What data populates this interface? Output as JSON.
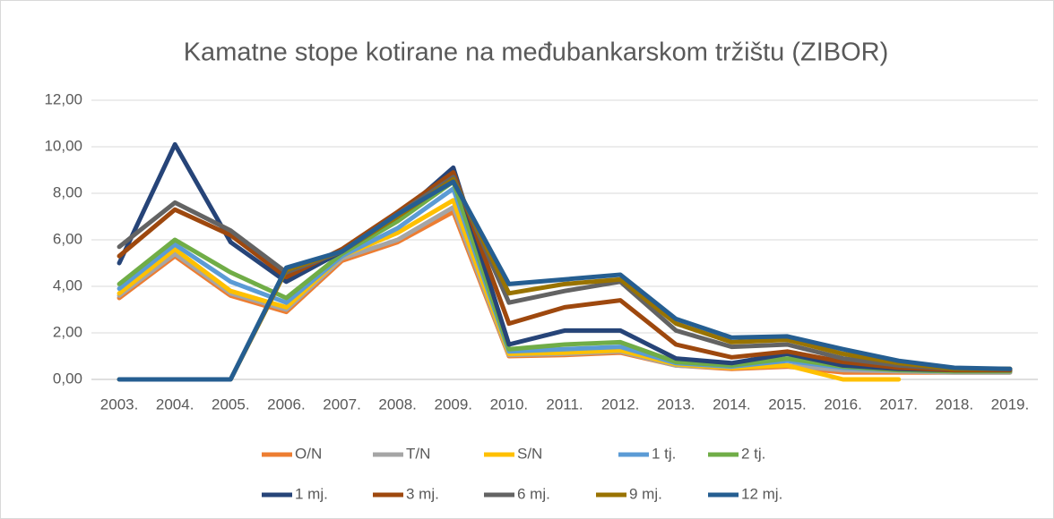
{
  "chart_data": {
    "type": "line",
    "title": "Kamatne stope kotirane na međubankarskom tržištu (ZIBOR)",
    "categories": [
      "2003.",
      "2004.",
      "2005.",
      "2006.",
      "2007.",
      "2008.",
      "2009.",
      "2010.",
      "2011.",
      "2012.",
      "2013.",
      "2014.",
      "2015.",
      "2016.",
      "2017.",
      "2018.",
      "2019."
    ],
    "series": [
      {
        "name": "O/N",
        "color": "#ed7d31",
        "values": [
          3.5,
          5.3,
          3.6,
          2.9,
          5.1,
          5.9,
          7.2,
          1.0,
          1.05,
          1.15,
          0.6,
          0.45,
          0.55,
          0.3,
          0.3,
          0.3,
          0.3
        ]
      },
      {
        "name": "T/N",
        "color": "#a5a5a5",
        "values": [
          3.6,
          5.4,
          3.7,
          3.0,
          5.2,
          6.0,
          7.4,
          1.05,
          1.1,
          1.2,
          0.6,
          0.5,
          0.6,
          0.4,
          0.35,
          0.3,
          0.3
        ]
      },
      {
        "name": "S/N",
        "color": "#ffc000",
        "values": [
          3.7,
          5.6,
          3.8,
          3.1,
          5.3,
          6.3,
          7.7,
          1.1,
          1.15,
          1.25,
          0.65,
          0.5,
          0.6,
          0,
          0,
          null,
          null
        ]
      },
      {
        "name": "1 tj.",
        "color": "#5b9bd5",
        "values": [
          3.9,
          5.8,
          4.2,
          3.3,
          5.3,
          6.5,
          8.2,
          1.2,
          1.3,
          1.4,
          0.7,
          0.55,
          0.8,
          0.5,
          0.4,
          0.35,
          0.35
        ]
      },
      {
        "name": "2 tj.",
        "color": "#70ad47",
        "values": [
          4.1,
          6.0,
          4.6,
          3.5,
          5.4,
          6.8,
          8.5,
          1.3,
          1.5,
          1.6,
          0.75,
          0.6,
          0.9,
          0.55,
          0.4,
          0.35,
          0.35
        ]
      },
      {
        "name": "1 mj.",
        "color": "#264478",
        "values": [
          5.0,
          10.1,
          5.9,
          4.2,
          5.5,
          7.0,
          9.1,
          1.5,
          2.1,
          2.1,
          0.9,
          0.7,
          1.1,
          0.6,
          0.45,
          0.4,
          0.4
        ]
      },
      {
        "name": "3 mj.",
        "color": "#9e480e",
        "values": [
          5.3,
          7.3,
          6.2,
          4.4,
          5.6,
          7.2,
          8.9,
          2.4,
          3.1,
          3.4,
          1.5,
          0.95,
          1.2,
          0.75,
          0.5,
          0.4,
          0.4
        ]
      },
      {
        "name": "6 mj.",
        "color": "#636363",
        "values": [
          5.7,
          7.6,
          6.4,
          4.6,
          5.5,
          7.1,
          8.7,
          3.3,
          3.8,
          4.2,
          2.1,
          1.4,
          1.5,
          0.9,
          0.6,
          0.45,
          0.45
        ]
      },
      {
        "name": "9 mj.",
        "color": "#997300",
        "values": [
          0,
          0,
          0,
          4.7,
          5.5,
          7.0,
          8.6,
          3.7,
          4.1,
          4.3,
          2.4,
          1.6,
          1.7,
          1.1,
          0.7,
          0.45,
          0.45
        ]
      },
      {
        "name": "12 mj.",
        "color": "#255e91",
        "values": [
          0,
          0,
          0,
          4.8,
          5.5,
          7.1,
          8.5,
          4.1,
          4.3,
          4.5,
          2.6,
          1.8,
          1.85,
          1.3,
          0.8,
          0.5,
          0.45
        ]
      }
    ],
    "ylim": [
      0,
      12
    ],
    "yticks": [
      {
        "value": 0,
        "label": "0,00"
      },
      {
        "value": 2,
        "label": "2,00"
      },
      {
        "value": 4,
        "label": "4,00"
      },
      {
        "value": 6,
        "label": "6,00"
      },
      {
        "value": 8,
        "label": "8,00"
      },
      {
        "value": 10,
        "label": "10,00"
      },
      {
        "value": 12,
        "label": "12,00"
      }
    ],
    "grid": true
  }
}
